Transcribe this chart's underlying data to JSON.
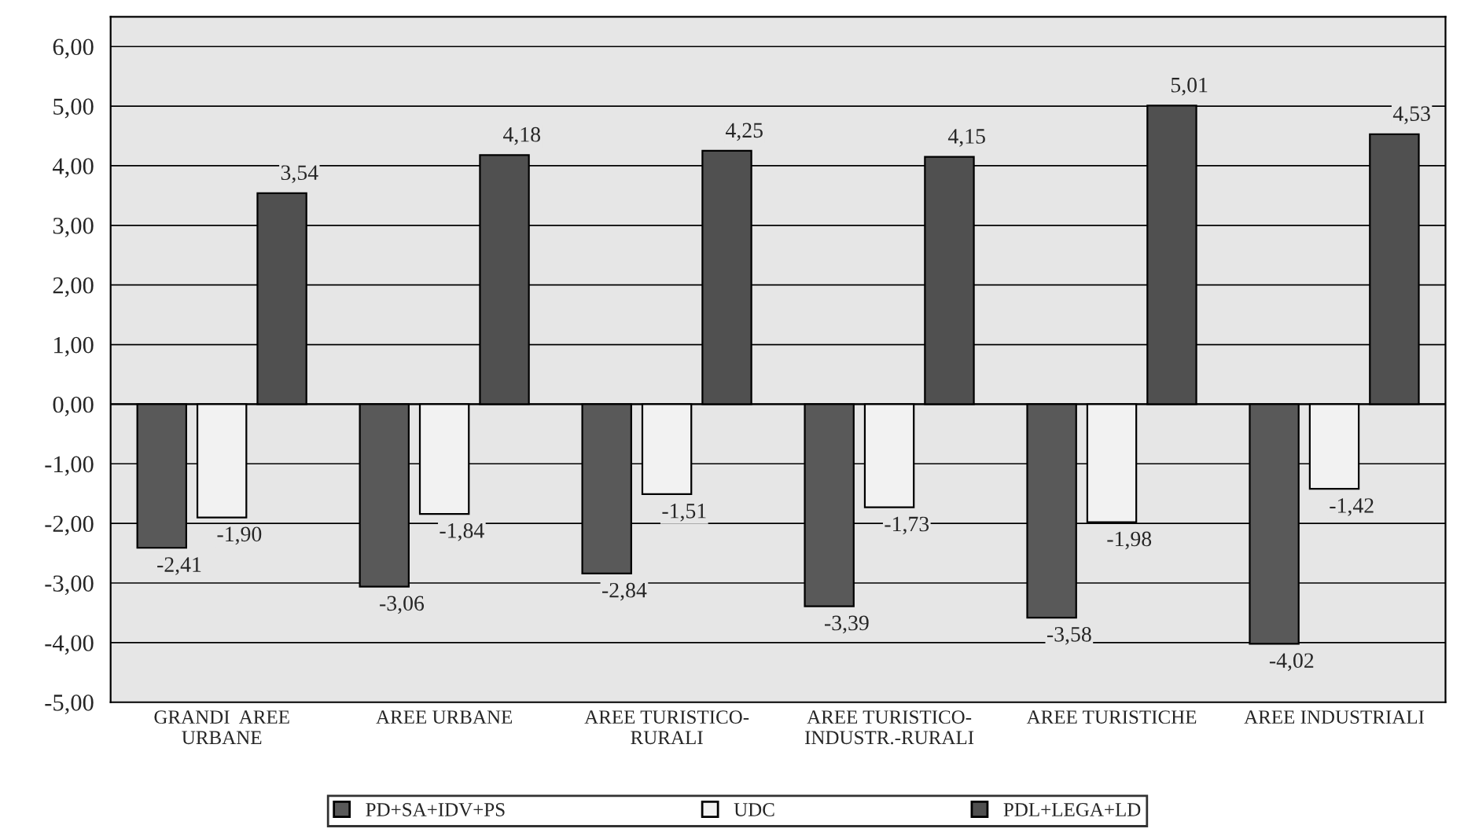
{
  "chart_data": {
    "type": "bar",
    "categories": [
      "GRANDI  AREE\nURBANE",
      "AREE URBANE",
      "AREE TURISTICO-\nRURALI",
      "AREE TURISTICO-\nINDUSTR.-RURALI",
      "AREE TURISTICHE",
      "AREE INDUSTRIALI"
    ],
    "series": [
      {
        "name": "PD+SA+IDV+PS",
        "color": "#595959",
        "values": [
          -2.41,
          -3.06,
          -2.84,
          -3.39,
          -3.58,
          -4.02
        ],
        "value_labels": [
          "-2,41",
          "-3,06",
          "-2,84",
          "-3,39",
          "-3,58",
          "-4,02"
        ]
      },
      {
        "name": "UDC",
        "color": "#f2f2f2",
        "values": [
          -1.9,
          -1.84,
          -1.51,
          -1.73,
          -1.98,
          -1.42
        ],
        "value_labels": [
          "-1,90",
          "-1,84",
          "-1,51",
          "-1,73",
          "-1,98",
          "-1,42"
        ]
      },
      {
        "name": "PDL+LEGA+LD",
        "color": "#505050",
        "values": [
          3.54,
          4.18,
          4.25,
          4.15,
          5.01,
          4.53
        ],
        "value_labels": [
          "3,54",
          "4,18",
          "4,25",
          "4,15",
          "5,01",
          "4,53"
        ]
      }
    ],
    "ylim": [
      -5,
      6.5
    ],
    "yticks": [
      {
        "value": -5,
        "label": "-5,00"
      },
      {
        "value": -4,
        "label": "-4,00"
      },
      {
        "value": -3,
        "label": "-3,00"
      },
      {
        "value": -2,
        "label": "-2,00"
      },
      {
        "value": -1,
        "label": "-1,00"
      },
      {
        "value": 0,
        "label": "0,00"
      },
      {
        "value": 1,
        "label": "1,00"
      },
      {
        "value": 2,
        "label": "2,00"
      },
      {
        "value": 3,
        "label": "3,00"
      },
      {
        "value": 4,
        "label": "4,00"
      },
      {
        "value": 5,
        "label": "5,00"
      },
      {
        "value": 6,
        "label": "6,00"
      }
    ],
    "grid": "y",
    "legend": "bottom"
  }
}
